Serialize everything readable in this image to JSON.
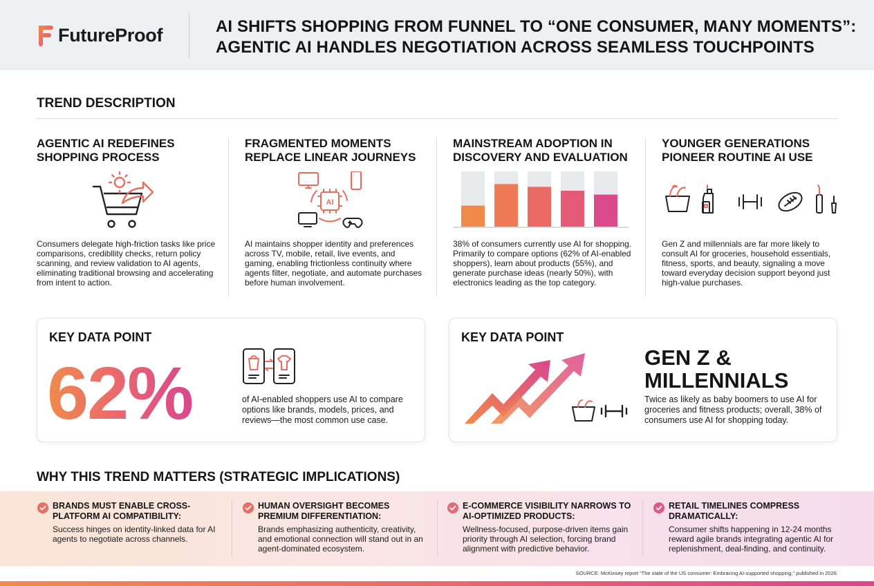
{
  "brand": {
    "logo_text": "FutureProof",
    "accent_orange": "#f08a4b",
    "accent_pink": "#d9468e"
  },
  "header": {
    "headline_line1": "AI SHIFTS SHOPPING FROM FUNNEL TO “ONE CONSUMER, MANY MOMENTS”:",
    "headline_line2": "AGENTIC AI HANDLES NEGOTIATION ACROSS SEAMLESS TOUCHPOINTS"
  },
  "trend": {
    "section_title": "TREND DESCRIPTION",
    "columns": [
      {
        "title_line1": "AGENTIC AI REDEFINES",
        "title_line2": "SHOPPING PROCESS",
        "icon": "cart-arrow-icon",
        "text": "Consumers delegate high-friction tasks like price comparisons, credibllity checks, return policy scanning, and review validation to AI agents, eliminating traditional browsing and accelerating from intent to action."
      },
      {
        "title_line1": "FRAGMENTED MOMENTS",
        "title_line2": "REPLACE LINEAR JOURNEYS",
        "icon": "ai-devices-icon",
        "text": "AI maintains shopper identity and preferences across TV, mobile, retail, live events, and gaming, enabling frictionless continuity where agents filter, negotiate, and automate purchases before human involvement."
      },
      {
        "title_line1": "MAINSTREAM ADOPTION IN",
        "title_line2": "DISCOVERY AND EVALUATION",
        "icon": "bar-chart-icon",
        "text": "38% of consumers currently use AI for shopping. Primarily to compare options (62% of AI-enabled shoppers), learn about products (55%), and generate purchase ideas (nearly 50%), with electronics leading as the top category."
      },
      {
        "title_line1": "YOUNGER GENERATIONS",
        "title_line2": "PIONEER ROUTINE AI USE",
        "icon": "category-icons",
        "text": "Gen Z and millennials are far more likely to consult AI for groceries, household essentials, fitness, sports, and beauty, signaling a move toward everyday decision support beyond just high-value purchases."
      }
    ],
    "bar_fill_levels": [
      0.38,
      0.77,
      0.72,
      0.65,
      0.58
    ]
  },
  "key_points": [
    {
      "title": "KEY DATA POINT",
      "value": "62%",
      "icon": "compare-devices-icon",
      "text": "of AI-enabled shoppers use AI to compare options like brands, models, prices, and reviews—the most common use case."
    },
    {
      "title": "KEY DATA POINT",
      "headline_line1": "GEN Z &",
      "headline_line2": "MILLENNIALS",
      "icon": "growth-arrows-icon",
      "text": "Twice as likely as baby boomers to use AI for groceries and fitness products; overall, 38% of consumers use AI for shopping today."
    }
  ],
  "implications": {
    "section_title": "WHY THIS TREND MATTERS (STRATEGIC IMPLICATIONS)",
    "items": [
      {
        "title": "BRANDS MUST ENABLE CROSS-PLATFORM AI COMPATIBILITY:",
        "text": "Success hinges on identity-linked data for AI agents to negotiate across channels."
      },
      {
        "title": "HUMAN OVERSIGHT BECOMES PREMIUM DIFFERENTIATION:",
        "text": "Brands emphasizing authenticity, creativity, and emotional connection will stand out in an agent-dominated ecosystem."
      },
      {
        "title": "E-COMMERCE VISIBILITY NARROWS TO AI-OPTIMIZED PRODUCTS:",
        "text": "Wellness-focused, purpose-driven items gain priority through AI selection, forcing brand alignment with predictive behavior."
      },
      {
        "title": "RETAIL TIMELINES COMPRESS DRAMATICALLY:",
        "text": "Consumer shifts happening in 12-24 months reward agile brands integrating agentic AI for replenishment, deal-finding, and continuity."
      }
    ]
  },
  "source": "SOURCE: McKinsey report “The state of the US consumer: Embracing AI-supported shopping,” published in 2026."
}
